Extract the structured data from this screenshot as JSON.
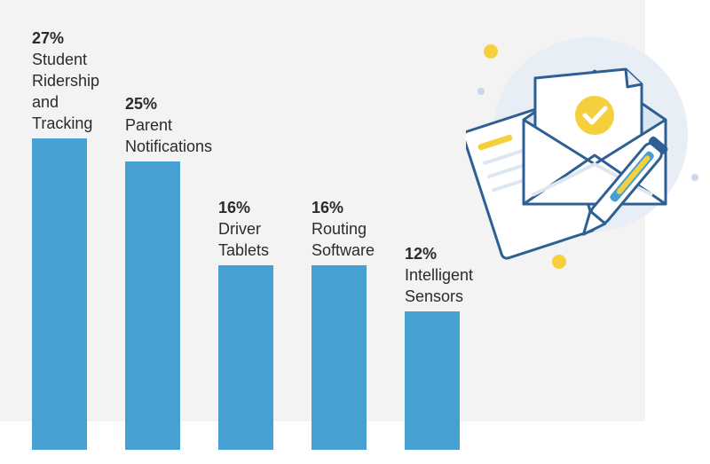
{
  "chart_data": {
    "type": "bar",
    "categories": [
      "Student\nRidership\nand\nTracking",
      "Parent\nNotifications",
      "Driver\nTablets",
      "Routing\nSoftware",
      "Intelligent\nSensors"
    ],
    "values": [
      27,
      25,
      16,
      16,
      12
    ],
    "value_labels": [
      "27%",
      "25%",
      "16%",
      "16%",
      "12%"
    ],
    "unit": "%",
    "bar_color": "#46a1d2",
    "background_color": "#f3f3f3",
    "grid": false,
    "legend": "none"
  },
  "illustration": {
    "icon": "envelope-with-checkmark-letter-and-pen-icon",
    "accent_yellow": "#f5cf3c",
    "outline_blue": "#2e5f94",
    "circle_color": "#e6edf6"
  }
}
